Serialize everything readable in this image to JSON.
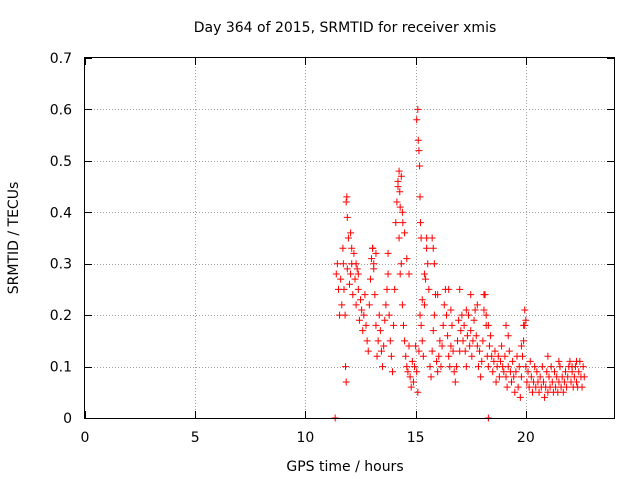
{
  "chart_data": {
    "type": "scatter",
    "title": "Day 364 of 2015, SRMTID for receiver xmis",
    "xlabel": "GPS time / hours",
    "ylabel": "SRMTID / TECUs",
    "xlim": [
      0,
      24
    ],
    "ylim": [
      0,
      0.7
    ],
    "xticks": [
      0,
      5,
      10,
      15,
      20
    ],
    "xtick_labels": [
      "0",
      "5",
      "10",
      "15",
      "20"
    ],
    "yticks": [
      0,
      0.1,
      0.2,
      0.3,
      0.4,
      0.5,
      0.6,
      0.7
    ],
    "ytick_labels": [
      "0",
      "0.1",
      "0.2",
      "0.3",
      "0.4",
      "0.5",
      "0.6",
      "0.7"
    ],
    "grid": true,
    "marker": "plus",
    "color": "#ff0000",
    "series": [
      {
        "name": "SRMTID",
        "x": [
          11.4,
          11.45,
          11.5,
          11.55,
          11.6,
          11.65,
          11.7,
          11.72,
          11.75,
          11.8,
          11.82,
          11.85,
          11.9,
          11.95,
          12.0,
          12.05,
          12.1,
          12.15,
          12.2,
          12.25,
          12.3,
          12.35,
          12.4,
          12.45,
          12.5,
          12.55,
          12.6,
          12.65,
          12.7,
          12.75,
          12.8,
          12.85,
          12.9,
          12.95,
          13.0,
          13.05,
          13.1,
          13.15,
          13.2,
          13.25,
          13.3,
          13.35,
          13.4,
          13.45,
          13.5,
          13.55,
          13.6,
          13.65,
          13.7,
          13.75,
          13.8,
          13.85,
          13.9,
          13.95,
          14.0,
          14.05,
          14.1,
          14.15,
          14.2,
          14.25,
          14.3,
          14.35,
          14.4,
          14.45,
          14.5,
          14.55,
          14.6,
          14.65,
          14.7,
          14.75,
          14.8,
          14.85,
          14.9,
          14.95,
          15.0,
          15.05,
          15.1,
          15.15,
          15.2,
          15.25,
          15.3,
          15.35,
          15.4,
          15.45,
          15.5,
          15.55,
          15.6,
          15.65,
          15.7,
          15.75,
          15.8,
          15.85,
          15.9,
          15.95,
          16.0,
          16.05,
          16.1,
          16.15,
          16.2,
          16.25,
          16.3,
          16.35,
          16.4,
          16.45,
          16.5,
          16.55,
          16.6,
          16.65,
          16.7,
          16.75,
          16.8,
          16.85,
          16.9,
          16.95,
          17.0,
          17.05,
          17.1,
          17.15,
          17.2,
          17.25,
          17.3,
          17.35,
          17.4,
          17.45,
          17.5,
          17.55,
          17.6,
          17.65,
          17.7,
          17.75,
          17.8,
          17.85,
          17.9,
          17.95,
          18.0,
          18.05,
          18.1,
          18.15,
          18.2,
          18.25,
          18.3,
          18.35,
          18.4,
          18.45,
          18.5,
          18.55,
          18.6,
          18.65,
          18.7,
          18.75,
          18.8,
          18.85,
          18.9,
          18.95,
          19.0,
          19.05,
          19.1,
          19.15,
          19.2,
          19.25,
          19.3,
          19.35,
          19.4,
          19.45,
          19.5,
          19.55,
          19.6,
          19.65,
          19.7,
          19.75,
          19.8,
          19.85,
          19.9,
          19.95,
          20.0,
          20.05,
          20.1,
          20.15,
          20.2,
          20.25,
          20.3,
          20.35,
          20.4,
          20.45,
          20.5,
          20.55,
          20.6,
          20.65,
          20.7,
          20.75,
          20.8,
          20.85,
          20.9,
          20.95,
          21.0,
          21.05,
          21.1,
          21.15,
          21.2,
          21.25,
          21.3,
          21.35,
          21.4,
          21.45,
          21.5,
          21.55,
          21.6,
          21.65,
          21.7,
          21.75,
          21.8,
          21.85,
          21.9,
          21.95,
          22.0,
          22.05,
          22.1,
          22.15,
          22.2,
          22.25,
          22.3,
          22.35,
          22.4,
          22.45,
          22.5,
          22.55,
          22.6,
          22.65,
          11.85,
          11.88,
          11.9,
          12.05,
          12.1,
          12.3,
          12.4,
          13.05,
          13.1,
          13.2,
          13.75,
          14.2,
          14.25,
          14.28,
          14.3,
          14.35,
          14.4,
          14.42,
          14.5,
          14.6,
          14.7,
          15.05,
          15.1,
          15.12,
          15.15,
          15.18,
          15.2,
          15.22,
          15.25,
          15.3,
          15.4,
          15.5,
          15.75,
          15.8,
          15.85,
          16.0,
          16.5,
          16.6,
          17.0,
          17.3,
          17.5,
          17.8,
          18.1,
          18.2,
          18.3,
          19.1,
          19.2,
          19.8,
          19.9,
          19.95,
          20.0,
          21.0,
          21.5,
          22.1,
          22.3,
          11.35,
          18.3
        ],
        "y": [
          0.28,
          0.3,
          0.25,
          0.2,
          0.27,
          0.22,
          0.33,
          0.3,
          0.25,
          0.2,
          0.1,
          0.07,
          0.29,
          0.35,
          0.26,
          0.28,
          0.3,
          0.24,
          0.32,
          0.27,
          0.22,
          0.29,
          0.25,
          0.19,
          0.23,
          0.21,
          0.17,
          0.2,
          0.24,
          0.18,
          0.15,
          0.13,
          0.22,
          0.27,
          0.31,
          0.33,
          0.29,
          0.24,
          0.18,
          0.12,
          0.15,
          0.2,
          0.17,
          0.13,
          0.1,
          0.14,
          0.19,
          0.22,
          0.25,
          0.28,
          0.2,
          0.15,
          0.12,
          0.09,
          0.18,
          0.25,
          0.38,
          0.42,
          0.45,
          0.35,
          0.28,
          0.3,
          0.22,
          0.18,
          0.15,
          0.12,
          0.1,
          0.09,
          0.14,
          0.08,
          0.06,
          0.11,
          0.07,
          0.1,
          0.14,
          0.09,
          0.05,
          0.13,
          0.2,
          0.18,
          0.15,
          0.12,
          0.22,
          0.27,
          0.33,
          0.3,
          0.25,
          0.1,
          0.08,
          0.13,
          0.17,
          0.2,
          0.24,
          0.11,
          0.09,
          0.12,
          0.15,
          0.1,
          0.14,
          0.18,
          0.22,
          0.25,
          0.2,
          0.16,
          0.12,
          0.1,
          0.14,
          0.18,
          0.13,
          0.09,
          0.07,
          0.1,
          0.15,
          0.19,
          0.13,
          0.17,
          0.2,
          0.15,
          0.18,
          0.13,
          0.1,
          0.16,
          0.2,
          0.14,
          0.17,
          0.12,
          0.15,
          0.19,
          0.21,
          0.16,
          0.14,
          0.1,
          0.13,
          0.08,
          0.11,
          0.15,
          0.21,
          0.24,
          0.18,
          0.12,
          0.1,
          0.14,
          0.16,
          0.12,
          0.09,
          0.11,
          0.13,
          0.07,
          0.1,
          0.12,
          0.08,
          0.11,
          0.14,
          0.1,
          0.09,
          0.12,
          0.08,
          0.06,
          0.1,
          0.13,
          0.09,
          0.07,
          0.11,
          0.08,
          0.05,
          0.09,
          0.12,
          0.06,
          0.1,
          0.04,
          0.08,
          0.12,
          0.15,
          0.18,
          0.1,
          0.07,
          0.09,
          0.06,
          0.11,
          0.08,
          0.05,
          0.07,
          0.1,
          0.06,
          0.09,
          0.07,
          0.05,
          0.08,
          0.06,
          0.1,
          0.07,
          0.04,
          0.06,
          0.09,
          0.05,
          0.08,
          0.06,
          0.1,
          0.07,
          0.05,
          0.09,
          0.06,
          0.08,
          0.05,
          0.07,
          0.1,
          0.06,
          0.08,
          0.05,
          0.07,
          0.09,
          0.06,
          0.08,
          0.1,
          0.11,
          0.07,
          0.09,
          0.06,
          0.08,
          0.1,
          0.07,
          0.06,
          0.09,
          0.11,
          0.08,
          0.06,
          0.1,
          0.08,
          0.42,
          0.43,
          0.39,
          0.36,
          0.33,
          0.3,
          0.28,
          0.33,
          0.3,
          0.32,
          0.32,
          0.46,
          0.48,
          0.44,
          0.41,
          0.47,
          0.4,
          0.38,
          0.36,
          0.31,
          0.28,
          0.58,
          0.6,
          0.54,
          0.52,
          0.49,
          0.43,
          0.38,
          0.35,
          0.23,
          0.28,
          0.35,
          0.35,
          0.33,
          0.3,
          0.24,
          0.25,
          0.21,
          0.25,
          0.21,
          0.24,
          0.22,
          0.24,
          0.2,
          0.18,
          0.18,
          0.16,
          0.14,
          0.18,
          0.21,
          0.19,
          0.12,
          0.11,
          0.1,
          0.11,
          0.0,
          0.0
        ]
      }
    ]
  }
}
